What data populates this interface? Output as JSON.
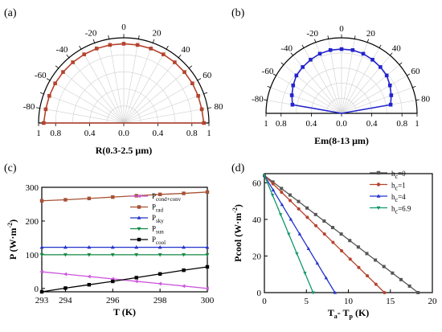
{
  "chart_data": [
    {
      "panel": "(a)",
      "type": "polar-half",
      "xlabel": "R(0.3-2.5 μm)",
      "angle_ticks": [
        "-80",
        "-60",
        "-40",
        "-20",
        "0",
        "20",
        "40",
        "60",
        "80"
      ],
      "radial_ticks": [
        "1",
        "0.8",
        "0.4",
        "0.0",
        "0.4",
        "0.8",
        "1"
      ],
      "rlim": [
        0,
        1
      ],
      "grid": true,
      "series": [
        {
          "color": "#b5432e",
          "angles": [
            -90,
            -80,
            -70,
            -60,
            -50,
            -40,
            -30,
            -20,
            -10,
            0,
            10,
            20,
            30,
            40,
            50,
            60,
            70,
            80,
            90
          ],
          "values": [
            0.94,
            0.93,
            0.93,
            0.93,
            0.93,
            0.93,
            0.93,
            0.93,
            0.93,
            0.93,
            0.93,
            0.93,
            0.93,
            0.93,
            0.93,
            0.93,
            0.93,
            0.93,
            0.94
          ]
        }
      ]
    },
    {
      "panel": "(b)",
      "type": "polar-half",
      "xlabel": "Em(8-13 μm)",
      "angle_ticks": [
        "-80",
        "-60",
        "-40",
        "-20",
        "0",
        "20",
        "40",
        "60",
        "80"
      ],
      "radial_ticks": [
        "1",
        "0.8",
        "0.4",
        "0.0",
        "0.4",
        "0.8",
        "1"
      ],
      "rlim": [
        0,
        1
      ],
      "grid": true,
      "series": [
        {
          "color": "#2323cc",
          "angles": [
            -80,
            -70,
            -60,
            -50,
            -40,
            -30,
            -20,
            -10,
            0,
            10,
            20,
            30,
            40,
            50,
            60,
            70,
            80
          ],
          "values": [
            0.66,
            0.7,
            0.74,
            0.78,
            0.8,
            0.82,
            0.84,
            0.85,
            0.85,
            0.85,
            0.84,
            0.82,
            0.8,
            0.78,
            0.74,
            0.7,
            0.66
          ]
        }
      ]
    },
    {
      "panel": "(c)",
      "type": "line",
      "xlabel": "T (K)",
      "ylabel": "P (W·m",
      "ylabel_sup": "-2",
      "ylabel_end": ")",
      "xlim": [
        293,
        300
      ],
      "ylim": [
        -10,
        300
      ],
      "xticks": [
        293,
        294,
        296,
        298,
        300
      ],
      "yticks": [
        0,
        100,
        200,
        300
      ],
      "legend_position": "right",
      "x": [
        293,
        294,
        295,
        296,
        297,
        298,
        299,
        300
      ],
      "series": [
        {
          "name": "P",
          "sub": "cond+conv",
          "color": "#cc55dd",
          "marker": "triangle-left",
          "values": [
            49.5,
            42.4,
            35.4,
            28.3,
            21.2,
            14.1,
            7.1,
            0
          ]
        },
        {
          "name": "P",
          "sub": "rad",
          "color": "#a65234",
          "marker": "square",
          "values": [
            260,
            263,
            267,
            271,
            275,
            279,
            282,
            286
          ]
        },
        {
          "name": "P",
          "sub": "sky",
          "color": "#2233cc",
          "marker": "triangle-up",
          "values": [
            122,
            122,
            122,
            122,
            122,
            122,
            122,
            122
          ]
        },
        {
          "name": "P",
          "sub": "sun",
          "color": "#118844",
          "marker": "triangle-down",
          "values": [
            100,
            100,
            100,
            100,
            100,
            100,
            100,
            100
          ]
        },
        {
          "name": "P",
          "sub": "cool",
          "color": "#000000",
          "marker": "square",
          "values": [
            -10,
            1,
            11,
            21,
            32,
            43,
            54,
            64
          ]
        }
      ]
    },
    {
      "panel": "(d)",
      "type": "line",
      "xlabel": "T",
      "xlabel_sub1": "a",
      "xlabel_mid": "- T",
      "xlabel_sub2": "p",
      "xlabel_end": " (K)",
      "ylabel": "Pcool (W·m",
      "ylabel_sup": "-2",
      "ylabel_end": ")",
      "xlim": [
        0,
        20
      ],
      "ylim": [
        0,
        65
      ],
      "xticks": [
        0,
        5,
        10,
        15,
        20
      ],
      "yticks": [
        0,
        20,
        40,
        60
      ],
      "legend_position": "top-right",
      "series": [
        {
          "name": "h",
          "sub": "c",
          "suffix": "=0",
          "color": "#555555",
          "marker": "square",
          "x": [
            0,
            18.3
          ],
          "values": [
            64,
            0
          ]
        },
        {
          "name": "h",
          "sub": "c",
          "suffix": "=1",
          "color": "#b5432e",
          "marker": "circle",
          "x": [
            0,
            14.3
          ],
          "values": [
            64,
            0
          ]
        },
        {
          "name": "h",
          "sub": "c",
          "suffix": "=4",
          "color": "#2233cc",
          "marker": "triangle-up",
          "x": [
            0,
            8.4
          ],
          "values": [
            64,
            0
          ]
        },
        {
          "name": "h",
          "sub": "c",
          "suffix": "=6.9",
          "color": "#119966",
          "marker": "triangle-down",
          "x": [
            0,
            5.8
          ],
          "values": [
            64,
            0
          ]
        }
      ]
    }
  ]
}
